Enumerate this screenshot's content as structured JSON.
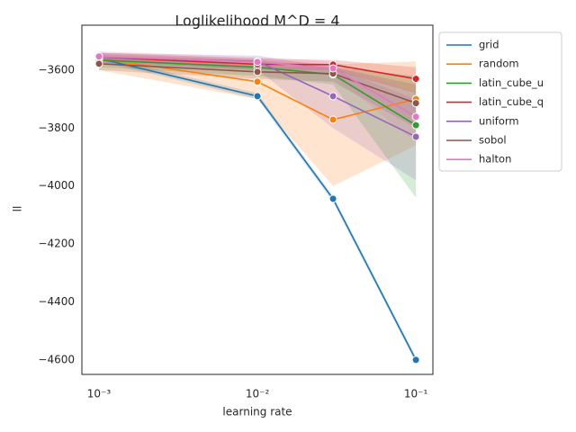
{
  "chart_data": {
    "type": "line",
    "title": "Loglikelihood M^D = 4",
    "x_label": "learning rate",
    "y_label": "ll",
    "x": [
      0.001,
      0.01,
      0.03,
      0.1
    ],
    "xscale": "log",
    "xlim": [
      0.00078,
      0.128
    ],
    "ylim": [
      -4650,
      -3445
    ],
    "xticks": [
      {
        "value": 0.001,
        "label": "10⁻³"
      },
      {
        "value": 0.01,
        "label": "10⁻²"
      },
      {
        "value": 0.1,
        "label": "10⁻¹"
      }
    ],
    "yticks": [
      {
        "value": -3600,
        "label": "−3600"
      },
      {
        "value": -3800,
        "label": "−3800"
      },
      {
        "value": -4000,
        "label": "−4000"
      },
      {
        "value": -4200,
        "label": "−4200"
      },
      {
        "value": -4400,
        "label": "−4400"
      },
      {
        "value": -4600,
        "label": "−4600"
      }
    ],
    "grid": false,
    "legend": "outside upper right",
    "series": [
      {
        "name": "grid",
        "color": "#1f77b4",
        "values": [
          -3560,
          -3690,
          -4044,
          -4600
        ],
        "lower": [
          -3570,
          -3700,
          -4055,
          -4610
        ],
        "upper": [
          -3550,
          -3680,
          -4035,
          -4590
        ]
      },
      {
        "name": "random",
        "color": "#ff7f0e",
        "values": [
          -3560,
          -3640,
          -3771,
          -3700
        ],
        "lower": [
          -3600,
          -3700,
          -4000,
          -3860
        ],
        "upper": [
          -3540,
          -3560,
          -3580,
          -3570
        ]
      },
      {
        "name": "latin_cube_u",
        "color": "#2ca02c",
        "values": [
          -3565,
          -3590,
          -3615,
          -3790
        ],
        "lower": [
          -3590,
          -3620,
          -3650,
          -4040
        ],
        "upper": [
          -3545,
          -3565,
          -3590,
          -3620
        ]
      },
      {
        "name": "latin_cube_q",
        "color": "#d62728",
        "values": [
          -3555,
          -3580,
          -3581,
          -3630
        ],
        "lower": [
          -3570,
          -3600,
          -3600,
          -3680
        ],
        "upper": [
          -3540,
          -3560,
          -3565,
          -3590
        ]
      },
      {
        "name": "uniform",
        "color": "#9467bd",
        "values": [
          -3555,
          -3570,
          -3690,
          -3830
        ],
        "lower": [
          -3580,
          -3600,
          -3800,
          -3980
        ],
        "upper": [
          -3540,
          -3550,
          -3590,
          -3700
        ]
      },
      {
        "name": "sobol",
        "color": "#8c564b",
        "values": [
          -3578,
          -3606,
          -3612,
          -3714
        ],
        "lower": [
          -3600,
          -3630,
          -3640,
          -3800
        ],
        "upper": [
          -3555,
          -3585,
          -3590,
          -3650
        ]
      },
      {
        "name": "halton",
        "color": "#e377c2",
        "values": [
          -3553,
          -3572,
          -3594,
          -3761
        ],
        "lower": [
          -3575,
          -3590,
          -3620,
          -3850
        ],
        "upper": [
          -3535,
          -3555,
          -3570,
          -3680
        ]
      }
    ]
  }
}
